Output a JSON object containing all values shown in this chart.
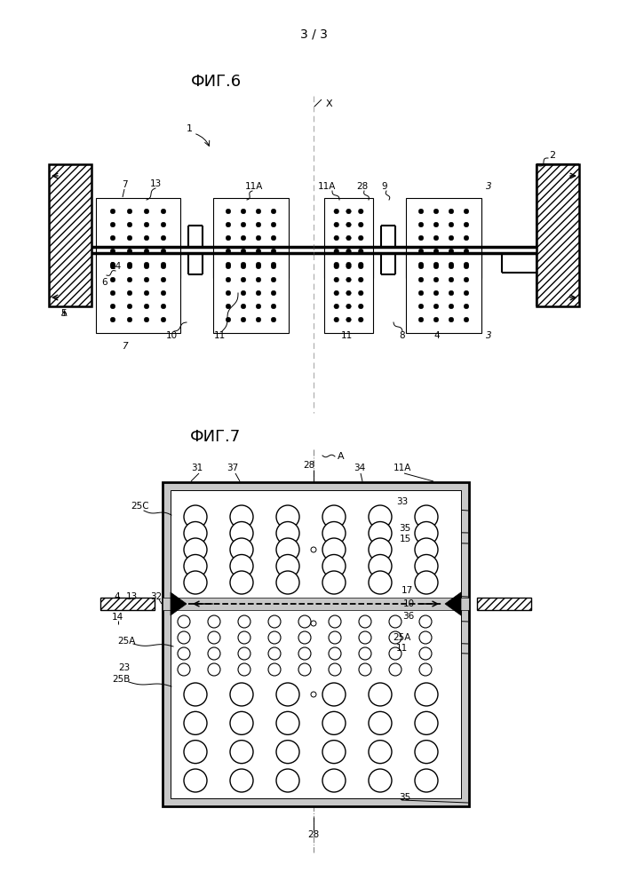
{
  "page_label": "3 / 3",
  "fig6_title": "ФИГ.6",
  "fig7_title": "ФИГ.7",
  "bg_color": "#ffffff"
}
